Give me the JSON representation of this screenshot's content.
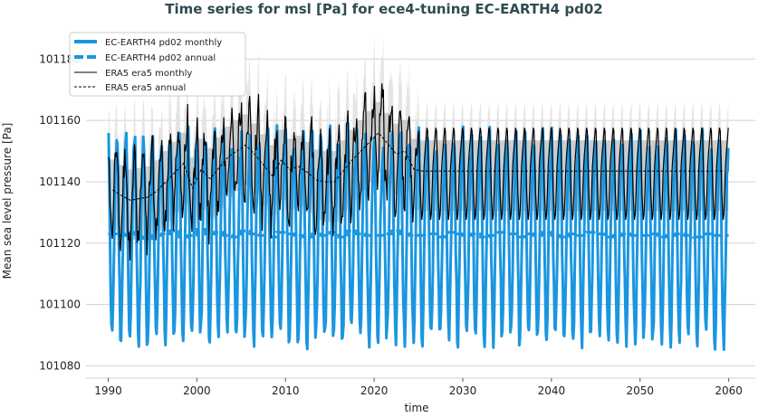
{
  "chart_data": {
    "type": "line",
    "title": "Time series for msl [Pa] for ece4-tuning EC-EARTH4 pd02",
    "xlabel": "time",
    "ylabel": "Mean sea level pressure [Pa]",
    "xlim": [
      1987.5,
      2063
    ],
    "ylim": [
      101076,
      101191
    ],
    "xticks": [
      1990,
      2000,
      2010,
      2020,
      2030,
      2040,
      2050,
      2060
    ],
    "yticks": [
      101080,
      101100,
      101120,
      101140,
      101160,
      101180
    ],
    "grid": "horizontal",
    "legend_position": "top-left",
    "years": [
      1990,
      2059
    ],
    "series": [
      {
        "name": "EC-EARTH4 pd02 monthly",
        "color": "#1a96e0",
        "style": "solid-thick",
        "seasonal_cycle": [
          101155,
          101140,
          101120,
          101105,
          101092,
          101090,
          101098,
          101112,
          101128,
          101140,
          101148,
          101152
        ]
      },
      {
        "name": "EC-EARTH4 pd02 annual",
        "color": "#1a96e0",
        "style": "dashed-thick",
        "values": [
          101123.0,
          101122.5,
          101123.5,
          101122.0,
          101121.5,
          101122.5,
          101123.0,
          101124.0,
          101122.0,
          101122.5,
          101124.5,
          101123.0,
          101123.5,
          101122.5,
          101122.0,
          101124.0,
          101123.0,
          101122.5,
          101122.0,
          101123.5,
          101123.0,
          101122.5,
          101122.0,
          101123.0,
          101122.5,
          101123.5,
          101122.0,
          101124.0,
          101123.0,
          101122.5,
          101122.5,
          101123.0,
          101124.0,
          101123.0,
          101122.5,
          101122.5,
          101123.0,
          101122.0,
          101123.5,
          101123.0,
          101122.5,
          101123.0,
          101122.0,
          101122.5,
          101123.5,
          101123.0,
          101122.0,
          101123.0,
          101122.5,
          101123.5,
          101122.5,
          101122.0,
          101123.0,
          101122.5,
          101123.5,
          101123.0,
          101122.0,
          101122.5,
          101123.0,
          101122.5,
          101122.5,
          101123.0,
          101122.0,
          101122.5,
          101123.0,
          101122.5,
          101122.0,
          101123.0,
          101122.5,
          101122.5
        ]
      },
      {
        "name": "ERA5 era5 monthly",
        "color": "#000000",
        "style": "solid-thin",
        "seasonal_cycle": [
          101160,
          101150,
          101140,
          101135,
          101131,
          101133,
          101140,
          101148,
          101152,
          101155,
          101158,
          101161
        ]
      },
      {
        "name": "ERA5 era5 annual",
        "color": "#000000",
        "style": "dashed-thin",
        "values": [
          101137.3,
          101135.5,
          101134.0,
          101134.5,
          101135.0,
          101137.0,
          101140.0,
          101143.0,
          101146.0,
          101138.0,
          101144.0,
          101141.0,
          101144.5,
          101148.0,
          101150.0,
          101152.0,
          101149.0,
          101145.5,
          101142.0,
          101147.0,
          101144.0,
          101145.0,
          101143.0,
          101140.5,
          101140.0,
          101140.0,
          101143.5,
          101147.0,
          101150.0,
          101153.0,
          101156.0,
          101152.5,
          101149.0,
          101150.0,
          101144.0,
          101143.5,
          101143.5,
          101143.5,
          101143.5,
          101143.5,
          101143.5,
          101143.5,
          101143.5,
          101143.5,
          101143.5,
          101143.5,
          101143.5,
          101143.5,
          101143.5,
          101143.5,
          101143.5,
          101143.5,
          101143.5,
          101143.5,
          101143.5,
          101143.5,
          101143.5,
          101143.5,
          101143.5,
          101143.5,
          101143.5,
          101143.5,
          101143.5,
          101143.5,
          101143.5,
          101143.5,
          101143.5,
          101143.5,
          101143.5,
          101143.5
        ]
      }
    ],
    "era5_spread_band_color": "#bdbdbd"
  }
}
